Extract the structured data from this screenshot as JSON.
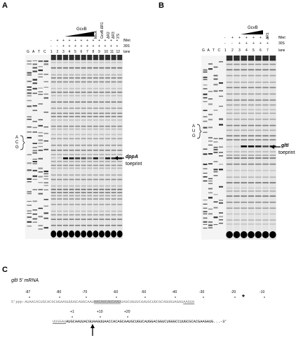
{
  "panels": {
    "a": "A",
    "b": "B",
    "c": "C"
  },
  "panel_a": {
    "lane_letters": [
      "G",
      "A",
      "T",
      "C"
    ],
    "lane_numbers": [
      "1",
      "2",
      "3",
      "4",
      "5",
      "6",
      "7",
      "8",
      "9",
      "10",
      "11",
      "12"
    ],
    "row_fmet_label": "fMet",
    "row_30s_label": "30S",
    "row_lane_label": "lane",
    "fmet_marks": [
      "-",
      "+",
      "+",
      "+",
      "+",
      "+",
      "+",
      "+",
      "+",
      "+",
      "+",
      "+"
    ],
    "s30_marks": [
      "-",
      "-",
      "+",
      "+",
      "+",
      "+",
      "+",
      "+",
      "+",
      "+",
      "+",
      "+"
    ],
    "gcvb_label": "GcvB",
    "mica_label": "MicA",
    "vertical_labels": [
      "GcvB ΔR1",
      "ΔR2",
      "ΔR3",
      "3'S"
    ],
    "bracket_letters": [
      "A",
      "C",
      "G"
    ],
    "gene": "dppA",
    "toeprint": "toeprint"
  },
  "panel_b": {
    "lane_letters": [
      "G",
      "A",
      "T",
      "C"
    ],
    "lane_numbers": [
      "1",
      "2",
      "3",
      "4",
      "5",
      "6",
      "7"
    ],
    "row_fmet_label": "fMet",
    "row_30s_label": "30S",
    "row_lane_label": "lane",
    "fmet_marks": [
      "-",
      "+",
      "+",
      "+",
      "+",
      "+",
      "+"
    ],
    "s30_marks": [
      "-",
      "-",
      "+",
      "+",
      "+",
      "+",
      "+"
    ],
    "gcvb_label": "GcvB",
    "vertical_label": "ΔR1",
    "bracket_letters": [
      "A",
      "U",
      "G"
    ],
    "gene": "gltI",
    "toeprint": "toeprint"
  },
  "panel_c": {
    "title": "gltI 5' mRNA",
    "top_positions": [
      "-87",
      "-80",
      "-70",
      "-60",
      "-50",
      "-40",
      "-30",
      "-20",
      "-10"
    ],
    "bottom_positions": [
      "+1",
      "+10",
      "+20"
    ],
    "star": "*",
    "line1_prefix": "5'ppp-",
    "line1": "AUAACACUGCACGCGGAAGUUUGCAGGCAAU",
    "line1_hl": "AACAACAUCAAU",
    "line1_rest": "UAGCUGUUCAAUGCUGCGCAGUGUAGAU",
    "line1_end": "AAGUA",
    "line2_start": "UUGGAU",
    "line2_main": "AUGCAAUUACGUAAGUUAACCACAGCAAUGCUGUCAUGGACGGUCUGGGCCUUGCGCACGAAGAUG",
    "line2_end": "...-3'"
  }
}
